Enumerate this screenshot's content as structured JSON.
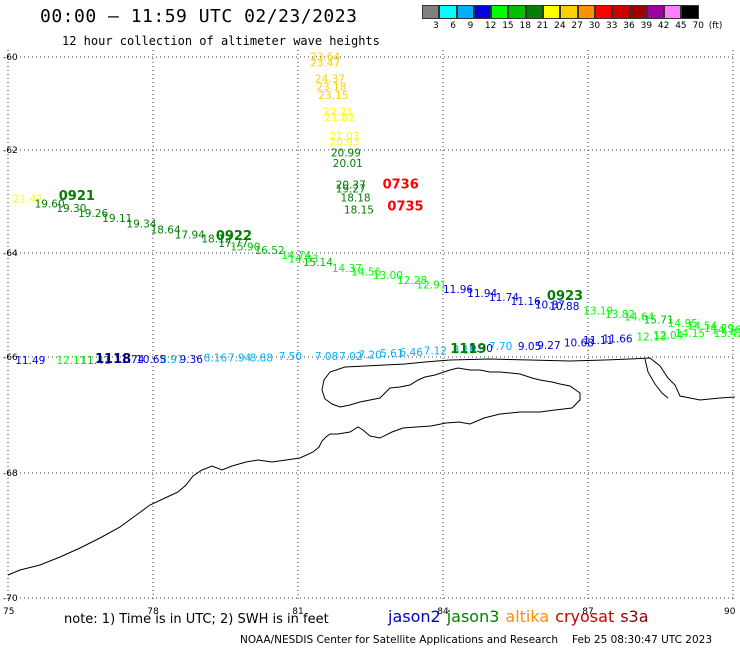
{
  "header": {
    "title": "00:00 – 11:59 UTC 02/23/2023",
    "subtitle": "12 hour collection of altimeter wave heights"
  },
  "color_scale": {
    "unit": "(ft)",
    "swatches": [
      {
        "label": "3",
        "color": "#808080"
      },
      {
        "label": "6",
        "color": "#00ffff"
      },
      {
        "label": "9",
        "color": "#00b0ff"
      },
      {
        "label": "12",
        "color": "#0000e0"
      },
      {
        "label": "15",
        "color": "#00ff00"
      },
      {
        "label": "18",
        "color": "#00c000"
      },
      {
        "label": "21",
        "color": "#008000"
      },
      {
        "label": "24",
        "color": "#ffff00"
      },
      {
        "label": "27",
        "color": "#ffd000"
      },
      {
        "label": "30",
        "color": "#ff9000"
      },
      {
        "label": "33",
        "color": "#ff0000"
      },
      {
        "label": "36",
        "color": "#d00000"
      },
      {
        "label": "39",
        "color": "#a00000"
      },
      {
        "label": "42",
        "color": "#a000a0"
      },
      {
        "label": "45",
        "color": "#ff80ff"
      },
      {
        "label": "70",
        "color": "#000000"
      }
    ]
  },
  "axes": {
    "lon_labels": [
      "75",
      "78",
      "81",
      "84",
      "87",
      "90"
    ],
    "lat_labels": [
      "-60",
      "-62",
      "-64",
      "-66",
      "-68",
      "-70"
    ]
  },
  "pass_labels": [
    {
      "text": "0921",
      "lon": 76.05,
      "lat": -62.97,
      "color": "#008000"
    },
    {
      "text": "0922",
      "lon": 79.3,
      "lat": -63.75,
      "color": "#008000"
    },
    {
      "text": "0923",
      "lon": 86.15,
      "lat": -64.9,
      "color": "#008000"
    },
    {
      "text": "0736",
      "lon": 82.75,
      "lat": -62.75,
      "color": "#ff0000"
    },
    {
      "text": "0735",
      "lon": 82.85,
      "lat": -63.17,
      "color": "#ff0000"
    },
    {
      "text": "1119",
      "lon": 84.15,
      "lat": -65.92,
      "color": "#008000"
    },
    {
      "text": "1118",
      "lon": 76.8,
      "lat": -66.1,
      "color": "#00008b"
    }
  ],
  "wave_values": [
    {
      "text": "23.64",
      "lon": 81.25,
      "lat": -60.08,
      "color": "#ffd000"
    },
    {
      "text": "23.47",
      "lon": 81.25,
      "lat": -60.2,
      "color": "#ffd000"
    },
    {
      "text": "24.37",
      "lon": 81.35,
      "lat": -60.55,
      "color": "#ffd000"
    },
    {
      "text": "23.18",
      "lon": 81.38,
      "lat": -60.72,
      "color": "#ffd000"
    },
    {
      "text": "23.15",
      "lon": 81.42,
      "lat": -60.9,
      "color": "#ffd000"
    },
    {
      "text": "22.21",
      "lon": 81.52,
      "lat": -61.26,
      "color": "#ffff00"
    },
    {
      "text": "21.82",
      "lon": 81.55,
      "lat": -61.38,
      "color": "#ffff00"
    },
    {
      "text": "21.03",
      "lon": 81.65,
      "lat": -61.78,
      "color": "#ffff00"
    },
    {
      "text": "20.93",
      "lon": 81.65,
      "lat": -61.9,
      "color": "#ffff00"
    },
    {
      "text": "20.99",
      "lon": 81.68,
      "lat": -62.13,
      "color": "#008000"
    },
    {
      "text": "20.01",
      "lon": 81.72,
      "lat": -62.33,
      "color": "#008000"
    },
    {
      "text": "20.37",
      "lon": 81.78,
      "lat": -62.75,
      "color": "#008000"
    },
    {
      "text": "19.27",
      "lon": 81.78,
      "lat": -62.83,
      "color": "#008000"
    },
    {
      "text": "18.18",
      "lon": 81.88,
      "lat": -63.0,
      "color": "#008000"
    },
    {
      "text": "18.15",
      "lon": 81.95,
      "lat": -63.23,
      "color": "#008000"
    },
    {
      "text": "21.42",
      "lon": 75.1,
      "lat": -63.02,
      "color": "#ffff00"
    },
    {
      "text": "19.60",
      "lon": 75.55,
      "lat": -63.12,
      "color": "#008000"
    },
    {
      "text": "19.30",
      "lon": 76.0,
      "lat": -63.2,
      "color": "#008000"
    },
    {
      "text": "19.26",
      "lon": 76.45,
      "lat": -63.3,
      "color": "#008000"
    },
    {
      "text": "19.11",
      "lon": 76.95,
      "lat": -63.4,
      "color": "#008000"
    },
    {
      "text": "19.34",
      "lon": 77.45,
      "lat": -63.5,
      "color": "#008000"
    },
    {
      "text": "18.64",
      "lon": 77.95,
      "lat": -63.62,
      "color": "#008000"
    },
    {
      "text": "17.94",
      "lon": 78.45,
      "lat": -63.72,
      "color": "#008000"
    },
    {
      "text": "18.12",
      "lon": 79.0,
      "lat": -63.8,
      "color": "#008000"
    },
    {
      "text": "17.77",
      "lon": 79.35,
      "lat": -63.88,
      "color": "#008000"
    },
    {
      "text": "15.90",
      "lon": 79.6,
      "lat": -63.95,
      "color": "#00c000"
    },
    {
      "text": "16.52",
      "lon": 80.1,
      "lat": -64.02,
      "color": "#00c000"
    },
    {
      "text": "14.74",
      "lon": 80.65,
      "lat": -64.12,
      "color": "#00ff00"
    },
    {
      "text": "14.33",
      "lon": 80.8,
      "lat": -64.18,
      "color": "#00ff00"
    },
    {
      "text": "15.14",
      "lon": 81.1,
      "lat": -64.25,
      "color": "#00c000"
    },
    {
      "text": "14.37",
      "lon": 81.7,
      "lat": -64.37,
      "color": "#00ff00"
    },
    {
      "text": "14.56",
      "lon": 82.1,
      "lat": -64.43,
      "color": "#00ff00"
    },
    {
      "text": "13.00",
      "lon": 82.55,
      "lat": -64.5,
      "color": "#00ff00"
    },
    {
      "text": "12.28",
      "lon": 83.05,
      "lat": -64.6,
      "color": "#00ff00"
    },
    {
      "text": "12.91",
      "lon": 83.45,
      "lat": -64.68,
      "color": "#00ff00"
    },
    {
      "text": "11.96",
      "lon": 84.0,
      "lat": -64.77,
      "color": "#0000e0"
    },
    {
      "text": "11.94",
      "lon": 84.5,
      "lat": -64.85,
      "color": "#0000e0"
    },
    {
      "text": "11.74",
      "lon": 84.95,
      "lat": -64.92,
      "color": "#0000e0"
    },
    {
      "text": "11.16",
      "lon": 85.4,
      "lat": -65.0,
      "color": "#0000e0"
    },
    {
      "text": "10.87",
      "lon": 85.9,
      "lat": -65.07,
      "color": "#0000e0"
    },
    {
      "text": "10.88",
      "lon": 86.2,
      "lat": -65.1,
      "color": "#0000e0"
    },
    {
      "text": "13.19",
      "lon": 86.9,
      "lat": -65.18,
      "color": "#00ff00"
    },
    {
      "text": "13.82",
      "lon": 87.35,
      "lat": -65.25,
      "color": "#00ff00"
    },
    {
      "text": "14.64",
      "lon": 87.75,
      "lat": -65.3,
      "color": "#00ff00"
    },
    {
      "text": "15.71",
      "lon": 88.15,
      "lat": -65.36,
      "color": "#00c000"
    },
    {
      "text": "14.95",
      "lon": 88.65,
      "lat": -65.42,
      "color": "#00ff00"
    },
    {
      "text": "14.54",
      "lon": 89.05,
      "lat": -65.47,
      "color": "#00ff00"
    },
    {
      "text": "14.29",
      "lon": 89.4,
      "lat": -65.52,
      "color": "#00ff00"
    },
    {
      "text": "14.76",
      "lon": 89.55,
      "lat": -65.55,
      "color": "#00ff00"
    },
    {
      "text": "13.42",
      "lon": 89.6,
      "lat": -65.62,
      "color": "#00ff00"
    },
    {
      "text": "12.13",
      "lon": 88.0,
      "lat": -65.68,
      "color": "#00ff00"
    },
    {
      "text": "12.04",
      "lon": 88.35,
      "lat": -65.65,
      "color": "#00ff00"
    },
    {
      "text": "14.15",
      "lon": 88.8,
      "lat": -65.62,
      "color": "#00ff00"
    },
    {
      "text": "11.66",
      "lon": 87.3,
      "lat": -65.72,
      "color": "#0000e0"
    },
    {
      "text": "11.11",
      "lon": 86.9,
      "lat": -65.75,
      "color": "#0000e0"
    },
    {
      "text": "10.68",
      "lon": 86.5,
      "lat": -65.8,
      "color": "#0000e0"
    },
    {
      "text": "9.27",
      "lon": 85.95,
      "lat": -65.85,
      "color": "#0000e0"
    },
    {
      "text": "9.05",
      "lon": 85.55,
      "lat": -65.87,
      "color": "#0000e0"
    },
    {
      "text": "7.70",
      "lon": 84.95,
      "lat": -65.87,
      "color": "#00b0ff"
    },
    {
      "text": "9.30",
      "lon": 84.55,
      "lat": -65.9,
      "color": "#0000e0"
    },
    {
      "text": "8.16",
      "lon": 84.2,
      "lat": -65.93,
      "color": "#00b0ff"
    },
    {
      "text": "7.12",
      "lon": 83.6,
      "lat": -65.95,
      "color": "#00b0ff"
    },
    {
      "text": "6.46",
      "lon": 83.1,
      "lat": -65.98,
      "color": "#00b0ff"
    },
    {
      "text": "5.61",
      "lon": 82.7,
      "lat": -66.0,
      "color": "#00b0ff"
    },
    {
      "text": "7.20",
      "lon": 82.25,
      "lat": -66.03,
      "color": "#00b0ff"
    },
    {
      "text": "7.02",
      "lon": 81.85,
      "lat": -66.05,
      "color": "#00b0ff"
    },
    {
      "text": "7.08",
      "lon": 81.35,
      "lat": -66.05,
      "color": "#00b0ff"
    },
    {
      "text": "7.50",
      "lon": 80.6,
      "lat": -66.05,
      "color": "#00b0ff"
    },
    {
      "text": "8.88",
      "lon": 80.0,
      "lat": -66.08,
      "color": "#00b0ff"
    },
    {
      "text": "7.94",
      "lon": 79.55,
      "lat": -66.08,
      "color": "#00b0ff"
    },
    {
      "text": "8.16",
      "lon": 79.05,
      "lat": -66.08,
      "color": "#00b0ff"
    },
    {
      "text": "9.36",
      "lon": 78.55,
      "lat": -66.1,
      "color": "#0000e0"
    },
    {
      "text": "8.97",
      "lon": 78.15,
      "lat": -66.1,
      "color": "#00b0ff"
    },
    {
      "text": "10.65",
      "lon": 77.65,
      "lat": -66.1,
      "color": "#0000e0"
    },
    {
      "text": "11.74",
      "lon": 77.2,
      "lat": -66.1,
      "color": "#0000e0"
    },
    {
      "text": "11.41",
      "lon": 76.5,
      "lat": -66.12,
      "color": "#00c000"
    },
    {
      "text": "12.11",
      "lon": 76.0,
      "lat": -66.12,
      "color": "#00ff00"
    },
    {
      "text": "11.49",
      "lon": 75.15,
      "lat": -66.12,
      "color": "#0000e0"
    }
  ],
  "footer": {
    "note": "note: 1) Time is in UTC; 2) SWH is in feet",
    "missions": [
      {
        "name": "jason2",
        "color": "#0000cc"
      },
      {
        "name": "jason3",
        "color": "#008000"
      },
      {
        "name": "altika",
        "color": "#ff9000"
      },
      {
        "name": "cryosat",
        "color": "#cc0000"
      },
      {
        "name": "s3a",
        "color": "#880000"
      }
    ],
    "credit": "NOAA/NESDIS Center for Satellite Applications and Research",
    "timestamp": "Feb 25 08:30:47 UTC 2023"
  }
}
